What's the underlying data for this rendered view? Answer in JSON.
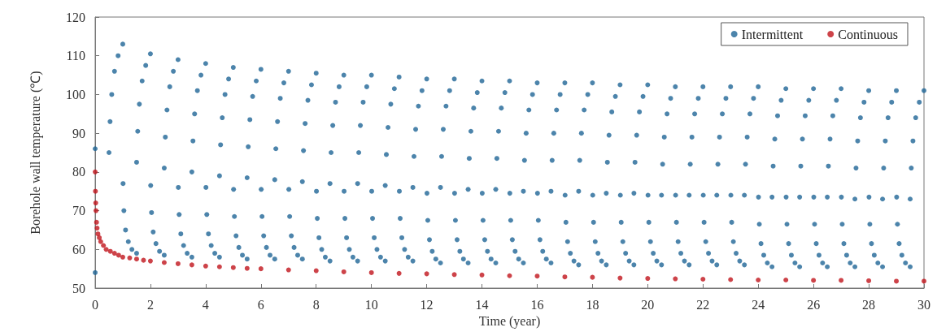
{
  "chart_data": {
    "type": "scatter",
    "xlabel": "Time (year)",
    "ylabel": "Borehole wall temperature (℃)",
    "xlim": [
      0,
      30
    ],
    "xticks": [
      0,
      2,
      4,
      6,
      8,
      10,
      12,
      14,
      16,
      18,
      20,
      22,
      24,
      26,
      28,
      30
    ],
    "ylim": [
      50,
      120
    ],
    "yticks": [
      50,
      60,
      70,
      80,
      90,
      100,
      110,
      120
    ],
    "legend": "top right",
    "marker": "circle",
    "series": [
      {
        "name": "Intermittent",
        "color": "#1f6596",
        "x": [
          0,
          0,
          0.5,
          0.54,
          0.6,
          0.7,
          0.83,
          1,
          1.01,
          1.04,
          1.1,
          1.2,
          1.33,
          1.5,
          1.5,
          1.54,
          1.6,
          1.7,
          1.83,
          2,
          2.01,
          2.04,
          2.1,
          2.2,
          2.33,
          2.5,
          2.5,
          2.54,
          2.6,
          2.7,
          2.83,
          3,
          3.01,
          3.04,
          3.1,
          3.2,
          3.33,
          3.5,
          3.5,
          3.54,
          3.6,
          3.7,
          3.83,
          4,
          4.01,
          4.04,
          4.1,
          4.2,
          4.33,
          4.5,
          4.5,
          4.54,
          4.6,
          4.7,
          4.83,
          5,
          5.01,
          5.04,
          5.1,
          5.2,
          5.33,
          5.5,
          5.5,
          5.54,
          5.6,
          5.7,
          5.83,
          6,
          6.01,
          6.04,
          6.1,
          6.2,
          6.33,
          6.5,
          6.5,
          6.54,
          6.6,
          6.7,
          6.83,
          7,
          7.01,
          7.04,
          7.1,
          7.2,
          7.33,
          7.5,
          7.5,
          7.54,
          7.6,
          7.7,
          7.83,
          8,
          8.01,
          8.04,
          8.1,
          8.2,
          8.33,
          8.5,
          8.5,
          8.54,
          8.6,
          8.7,
          8.83,
          9,
          9.01,
          9.04,
          9.1,
          9.2,
          9.33,
          9.5,
          9.5,
          9.54,
          9.6,
          9.7,
          9.83,
          10,
          10.01,
          10.04,
          10.1,
          10.2,
          10.33,
          10.5,
          10.5,
          10.54,
          10.6,
          10.7,
          10.83,
          11,
          11.01,
          11.04,
          11.1,
          11.2,
          11.33,
          11.5,
          11.5,
          11.54,
          11.6,
          11.7,
          11.83,
          12,
          12.01,
          12.04,
          12.1,
          12.2,
          12.33,
          12.5,
          12.5,
          12.54,
          12.6,
          12.7,
          12.83,
          13,
          13.01,
          13.04,
          13.1,
          13.2,
          13.33,
          13.5,
          13.5,
          13.54,
          13.6,
          13.7,
          13.83,
          14,
          14.01,
          14.04,
          14.1,
          14.2,
          14.33,
          14.5,
          14.5,
          14.54,
          14.6,
          14.7,
          14.83,
          15,
          15.01,
          15.04,
          15.1,
          15.2,
          15.33,
          15.5,
          15.5,
          15.54,
          15.6,
          15.7,
          15.83,
          16,
          16.01,
          16.04,
          16.1,
          16.2,
          16.33,
          16.5,
          16.5,
          16.54,
          16.6,
          16.7,
          16.83,
          17,
          17.01,
          17.04,
          17.1,
          17.2,
          17.33,
          17.5,
          17.5,
          17.54,
          17.6,
          17.7,
          17.83,
          18,
          18.01,
          18.04,
          18.1,
          18.2,
          18.33,
          18.5,
          18.5,
          18.54,
          18.6,
          18.7,
          18.83,
          19,
          19.01,
          19.04,
          19.1,
          19.2,
          19.33,
          19.5,
          19.5,
          19.54,
          19.6,
          19.7,
          19.83,
          20,
          20.01,
          20.04,
          20.1,
          20.2,
          20.33,
          20.5,
          20.5,
          20.54,
          20.6,
          20.7,
          20.83,
          21,
          21.01,
          21.04,
          21.1,
          21.2,
          21.33,
          21.5,
          21.5,
          21.54,
          21.6,
          21.7,
          21.83,
          22,
          22.01,
          22.04,
          22.1,
          22.2,
          22.33,
          22.5,
          22.5,
          22.54,
          22.6,
          22.7,
          22.83,
          23,
          23.01,
          23.04,
          23.1,
          23.2,
          23.33,
          23.5,
          23.5,
          23.54,
          23.6,
          23.7,
          23.83,
          24,
          24.01,
          24.04,
          24.1,
          24.2,
          24.33,
          24.5,
          24.5,
          24.54,
          24.6,
          24.7,
          24.83,
          25,
          25.01,
          25.04,
          25.1,
          25.2,
          25.33,
          25.5,
          25.5,
          25.54,
          25.6,
          25.7,
          25.83,
          26,
          26.01,
          26.04,
          26.1,
          26.2,
          26.33,
          26.5,
          26.5,
          26.54,
          26.6,
          26.7,
          26.83,
          27,
          27.01,
          27.04,
          27.1,
          27.2,
          27.33,
          27.5,
          27.5,
          27.54,
          27.6,
          27.7,
          27.83,
          28,
          28.01,
          28.04,
          28.1,
          28.2,
          28.33,
          28.5,
          28.5,
          28.54,
          28.6,
          28.7,
          28.83,
          29,
          29.01,
          29.04,
          29.1,
          29.2,
          29.33,
          29.5,
          29.5,
          29.54,
          29.6,
          29.7,
          29.83,
          30
        ],
        "values": [
          86,
          54,
          85,
          93,
          100,
          106,
          110,
          113,
          77,
          70,
          65,
          62,
          60,
          59,
          82.5,
          90.5,
          97.5,
          103.5,
          107.5,
          110.5,
          76.5,
          69.5,
          64.5,
          61.5,
          59.5,
          58.5,
          81,
          89,
          96,
          102,
          106,
          109,
          76,
          69,
          64,
          61,
          59,
          58,
          80,
          88,
          95,
          101,
          105,
          108,
          76,
          69,
          64,
          61,
          59,
          58,
          79,
          87,
          94,
          100,
          104,
          107,
          75.5,
          68.5,
          63.5,
          60.5,
          58.5,
          57.5,
          78.5,
          86.5,
          93.5,
          99.5,
          103.5,
          106.5,
          75.5,
          68.5,
          63.5,
          60.5,
          58.5,
          57.5,
          78,
          86,
          93,
          99,
          103,
          106,
          75.5,
          68.5,
          63.5,
          60.5,
          58.5,
          57.5,
          77.5,
          85.5,
          92.5,
          98.5,
          102.5,
          105.5,
          75,
          68,
          63,
          60,
          58,
          57,
          77,
          85,
          92,
          98,
          102,
          105,
          75,
          68,
          63,
          60,
          58,
          57,
          77,
          85,
          92,
          98,
          102,
          105,
          75,
          68,
          63,
          60,
          58,
          57,
          76.5,
          84.5,
          91.5,
          97.5,
          101.5,
          104.5,
          75,
          68,
          63,
          60,
          58,
          57,
          76,
          84,
          91,
          97,
          101,
          104,
          74.5,
          67.5,
          62.5,
          59.5,
          57.5,
          56.5,
          76,
          84,
          91,
          97,
          101,
          104,
          74.5,
          67.5,
          62.5,
          59.5,
          57.5,
          56.5,
          75.5,
          83.5,
          90.5,
          96.5,
          100.5,
          103.5,
          74.5,
          67.5,
          62.5,
          59.5,
          57.5,
          56.5,
          75.5,
          83.5,
          90.5,
          96.5,
          100.5,
          103.5,
          74.5,
          67.5,
          62.5,
          59.5,
          57.5,
          56.5,
          75,
          83,
          90,
          96,
          100,
          103,
          74.5,
          67.5,
          62.5,
          59.5,
          57.5,
          56.5,
          75,
          83,
          90,
          96,
          100,
          103,
          74,
          67,
          62,
          59,
          57,
          56,
          75,
          83,
          90,
          96,
          100,
          103,
          74,
          67,
          62,
          59,
          57,
          56,
          74.5,
          82.5,
          89.5,
          95.5,
          99.5,
          102.5,
          74,
          67,
          62,
          59,
          57,
          56,
          74.5,
          82.5,
          89.5,
          95.5,
          99.5,
          102.5,
          74,
          67,
          62,
          59,
          57,
          56,
          74,
          82,
          89,
          95,
          99,
          102,
          74,
          67,
          62,
          59,
          57,
          56,
          74,
          82,
          89,
          95,
          99,
          102,
          74,
          67,
          62,
          59,
          57,
          56,
          74,
          82,
          89,
          95,
          99,
          102,
          74,
          67,
          62,
          59,
          57,
          56,
          74,
          82,
          89,
          95,
          99,
          102,
          73.5,
          66.5,
          61.5,
          58.5,
          56.5,
          55.5,
          73.5,
          81.5,
          88.5,
          94.5,
          98.5,
          101.5,
          73.5,
          66.5,
          61.5,
          58.5,
          56.5,
          55.5,
          73.5,
          81.5,
          88.5,
          94.5,
          98.5,
          101.5,
          73.5,
          66.5,
          61.5,
          58.5,
          56.5,
          55.5,
          73.5,
          81.5,
          88.5,
          94.5,
          98.5,
          101.5,
          73.5,
          66.5,
          61.5,
          58.5,
          56.5,
          55.5,
          73,
          81,
          88,
          94,
          98,
          101,
          73.5,
          66.5,
          61.5,
          58.5,
          56.5,
          55.5,
          73,
          81,
          88,
          94,
          98,
          101,
          73.5,
          66.5,
          61.5,
          58.5,
          56.5,
          55.5,
          73,
          81,
          88,
          94,
          98,
          101
        ]
      },
      {
        "name": "Continuous",
        "color": "#c0141c",
        "x": [
          0,
          0.01,
          0.02,
          0.03,
          0.05,
          0.07,
          0.1,
          0.15,
          0.2,
          0.3,
          0.4,
          0.55,
          0.7,
          0.85,
          1,
          1.25,
          1.5,
          1.75,
          2,
          2.5,
          3,
          3.5,
          4,
          4.5,
          5,
          5.5,
          6,
          7,
          8,
          9,
          10,
          11,
          12,
          13,
          14,
          15,
          16,
          17,
          18,
          19,
          20,
          21,
          22,
          23,
          24,
          25,
          26,
          27,
          28,
          29,
          30
        ],
        "values": [
          80,
          75,
          72,
          70,
          67,
          65.5,
          64,
          63,
          62,
          61,
          60,
          59.5,
          59,
          58.5,
          58,
          57.8,
          57.5,
          57.2,
          57,
          56.6,
          56.3,
          56,
          55.7,
          55.5,
          55.3,
          55.1,
          55,
          54.7,
          54.5,
          54.2,
          54,
          53.8,
          53.7,
          53.5,
          53.4,
          53.2,
          53.1,
          52.9,
          52.8,
          52.6,
          52.5,
          52.4,
          52.3,
          52.2,
          52.1,
          52.1,
          52,
          52,
          51.9,
          51.8,
          51.8
        ]
      }
    ]
  }
}
